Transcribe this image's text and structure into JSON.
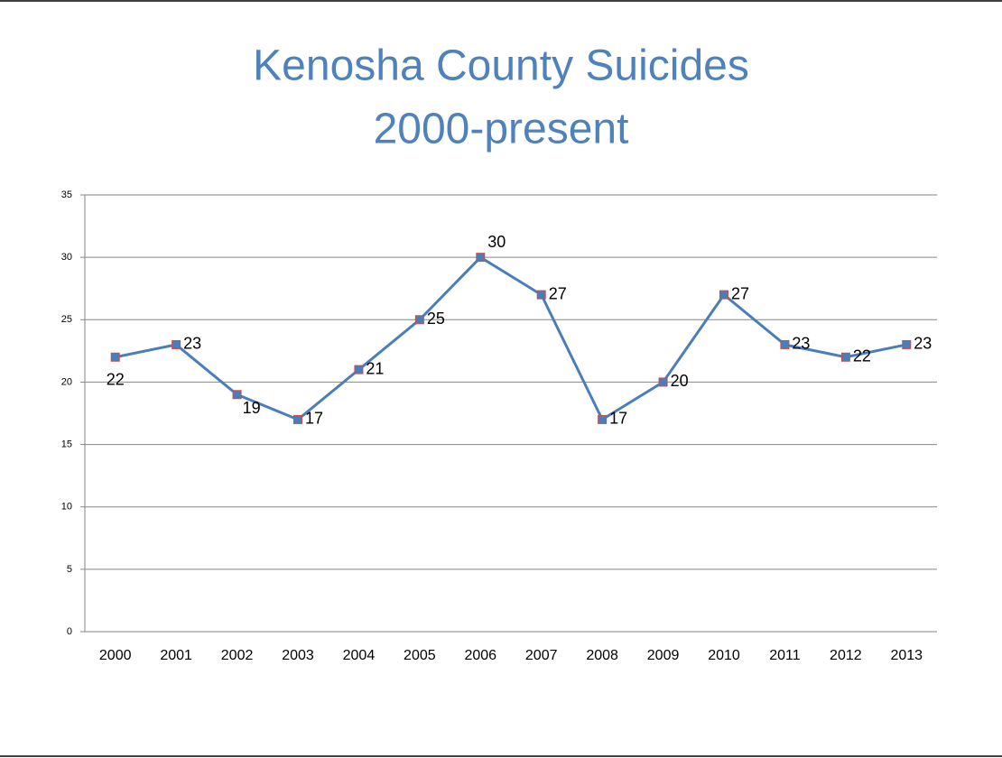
{
  "chart_data": {
    "type": "line",
    "title": "Kenosha County Suicides",
    "subtitle": "2000-present",
    "categories": [
      "2000",
      "2001",
      "2002",
      "2003",
      "2004",
      "2005",
      "2006",
      "2007",
      "2008",
      "2009",
      "2010",
      "2011",
      "2012",
      "2013"
    ],
    "series": [
      {
        "name": "Suicides",
        "color": "#4a7ebb",
        "marker_edge": "#c0504d",
        "values": [
          22,
          23,
          19,
          17,
          21,
          25,
          30,
          27,
          17,
          20,
          27,
          23,
          22,
          23
        ]
      }
    ],
    "ylim": [
      0,
      35
    ],
    "yticks": [
      0,
      5,
      10,
      15,
      20,
      25,
      30,
      35
    ],
    "grid": true,
    "legend": false
  }
}
